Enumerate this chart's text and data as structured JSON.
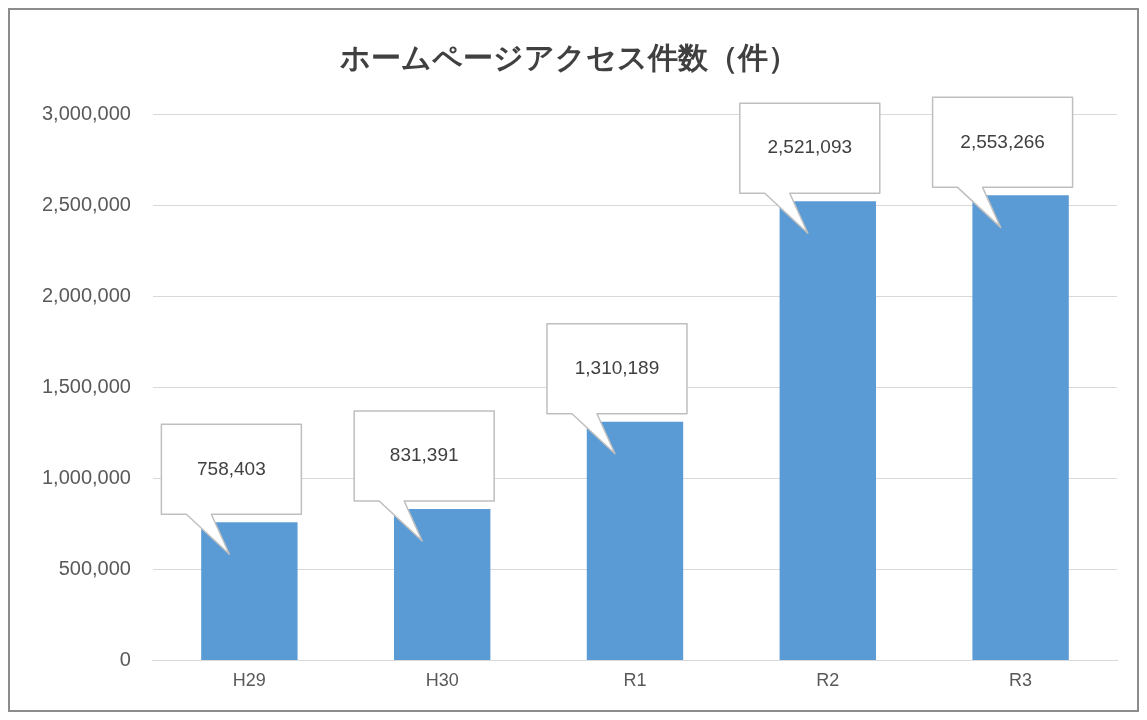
{
  "chart_data": {
    "type": "bar",
    "title": "ホームページアクセス件数（件）",
    "categories": [
      "H29",
      "H30",
      "R1",
      "R2",
      "R3"
    ],
    "values": [
      758403,
      831391,
      1310189,
      2521093,
      2553266
    ],
    "value_labels": [
      "758,403",
      "831,391",
      "1,310,189",
      "2,521,093",
      "2,553,266"
    ],
    "color": "#5b9bd5",
    "ylim": [
      0,
      3000000
    ],
    "yticks": [
      {
        "value": 0,
        "label": "0"
      },
      {
        "value": 500000,
        "label": "500,000"
      },
      {
        "value": 1000000,
        "label": "1,000,000"
      },
      {
        "value": 1500000,
        "label": "1,500,000"
      },
      {
        "value": 2000000,
        "label": "2,000,000"
      },
      {
        "value": 2500000,
        "label": "2,500,000"
      },
      {
        "value": 3000000,
        "label": "3,000,000"
      }
    ],
    "grid": "y",
    "legend": false
  }
}
